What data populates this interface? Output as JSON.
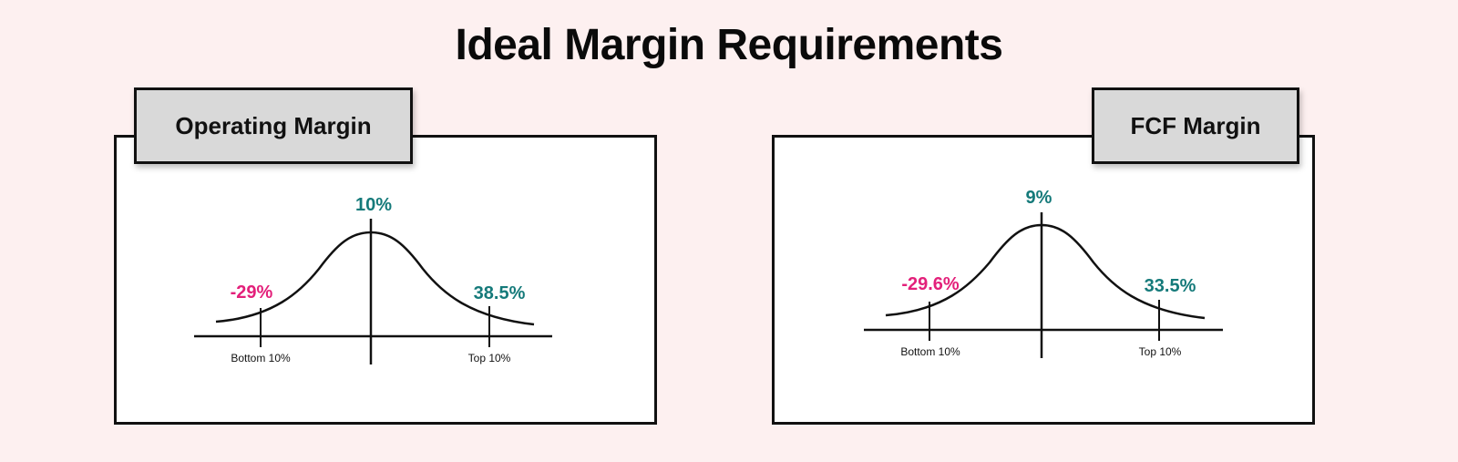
{
  "title": "Ideal Margin Requirements",
  "colors": {
    "mean": "#157a7a",
    "bottom": "#e3207a",
    "top": "#157a7a",
    "line": "#111111"
  },
  "panels": [
    {
      "heading": "Operating Margin",
      "mean_label": "10%",
      "bottom_value": "-29%",
      "top_value": "38.5%",
      "bottom_tick": "Bottom 10%",
      "top_tick": "Top 10%"
    },
    {
      "heading": "FCF Margin",
      "mean_label": "9%",
      "bottom_value": "-29.6%",
      "top_value": "33.5%",
      "bottom_tick": "Bottom 10%",
      "top_tick": "Top 10%"
    }
  ]
}
